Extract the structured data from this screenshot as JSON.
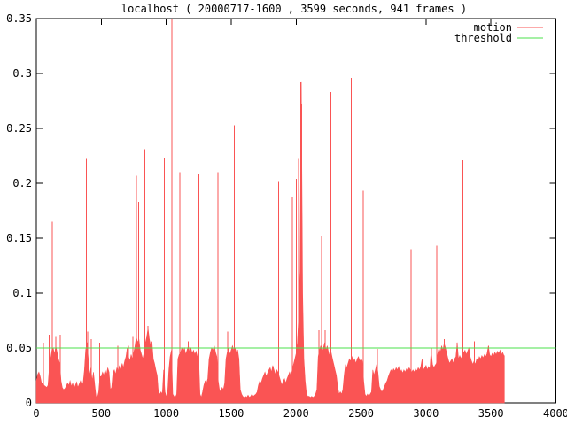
{
  "title": "localhost ( 20000717-1600 , 3599 seconds, 941 frames )",
  "colors": {
    "motion": "#fa5454",
    "threshold": "#4be14b",
    "axis": "#000000",
    "background": "#ffffff",
    "text": "#000000"
  },
  "legend": {
    "items": [
      {
        "label": "motion",
        "series": "motion"
      },
      {
        "label": "threshold",
        "series": "threshold"
      }
    ]
  },
  "chart_data": {
    "type": "line",
    "title": "localhost ( 20000717-1600 , 3599 seconds, 941 frames )",
    "xlabel": "",
    "ylabel": "",
    "xlim": [
      0,
      4000
    ],
    "ylim": [
      0,
      0.35
    ],
    "grid": false,
    "legend_position": "top-right-inside",
    "x_ticks": {
      "values": [
        0,
        500,
        1000,
        1500,
        2000,
        2500,
        3000,
        3500,
        4000
      ],
      "labels": [
        "0",
        "500",
        "1000",
        "1500",
        "2000",
        "2500",
        "3000",
        "3500",
        "4000"
      ]
    },
    "y_ticks": {
      "values": [
        0,
        0.05,
        0.1,
        0.15,
        0.2,
        0.25,
        0.3,
        0.35
      ],
      "labels": [
        "0",
        "0.05",
        "0.1",
        "0.15",
        "0.2",
        "0.25",
        "0.3",
        "0.35"
      ]
    },
    "series": [
      {
        "name": "motion",
        "color": "#fa5454",
        "style": "filled-noise-envelope",
        "x_start": 0,
        "x_step": 10,
        "x_end": 3603,
        "values": [
          0.02,
          0.026,
          0.028,
          0.024,
          0.018,
          0.018,
          0.016,
          0.015,
          0.014,
          0.016,
          0.032,
          0.04,
          0.048,
          0.05,
          0.044,
          0.052,
          0.046,
          0.04,
          0.036,
          0.02,
          0.014,
          0.012,
          0.013,
          0.015,
          0.018,
          0.016,
          0.02,
          0.015,
          0.018,
          0.013,
          0.016,
          0.019,
          0.014,
          0.017,
          0.02,
          0.016,
          0.018,
          0.03,
          0.048,
          0.055,
          0.04,
          0.025,
          0.032,
          0.02,
          0.028,
          0.016,
          0.006,
          0.005,
          0.01,
          0.024,
          0.024,
          0.028,
          0.025,
          0.03,
          0.026,
          0.032,
          0.028,
          0.012,
          0.014,
          0.028,
          0.03,
          0.026,
          0.032,
          0.028,
          0.034,
          0.03,
          0.036,
          0.032,
          0.038,
          0.042,
          0.05,
          0.042,
          0.038,
          0.044,
          0.04,
          0.046,
          0.052,
          0.06,
          0.055,
          0.058,
          0.048,
          0.044,
          0.04,
          0.046,
          0.055,
          0.06,
          0.068,
          0.058,
          0.052,
          0.056,
          0.04,
          0.036,
          0.03,
          0.025,
          0.01,
          0.008,
          0.01,
          0.008,
          0.03,
          0.01,
          0.006,
          0.008,
          0.03,
          0.042,
          0.048,
          0.008,
          0.006,
          0.005,
          0.008,
          0.04,
          0.044,
          0.046,
          0.05,
          0.047,
          0.05,
          0.044,
          0.048,
          0.052,
          0.046,
          0.05,
          0.045,
          0.048,
          0.044,
          0.047,
          0.042,
          0.04,
          0.008,
          0.005,
          0.01,
          0.016,
          0.02,
          0.018,
          0.022,
          0.04,
          0.046,
          0.05,
          0.048,
          0.052,
          0.046,
          0.042,
          0.02,
          0.012,
          0.01,
          0.014,
          0.012,
          0.018,
          0.04,
          0.046,
          0.05,
          0.044,
          0.048,
          0.052,
          0.048,
          0.05,
          0.046,
          0.048,
          0.04,
          0.012,
          0.008,
          0.006,
          0.005,
          0.006,
          0.005,
          0.007,
          0.005,
          0.006,
          0.008,
          0.006,
          0.007,
          0.008,
          0.01,
          0.016,
          0.02,
          0.018,
          0.022,
          0.025,
          0.028,
          0.024,
          0.027,
          0.03,
          0.032,
          0.028,
          0.034,
          0.03,
          0.026,
          0.03,
          0.028,
          0.024,
          0.02,
          0.016,
          0.02,
          0.022,
          0.018,
          0.022,
          0.025,
          0.028,
          0.024,
          0.03,
          0.035,
          0.04,
          0.045,
          0.055,
          0.08,
          0.12,
          0.292,
          0.1,
          0.04,
          0.02,
          0.008,
          0.006,
          0.006,
          0.005,
          0.006,
          0.005,
          0.006,
          0.008,
          0.012,
          0.042,
          0.048,
          0.052,
          0.046,
          0.05,
          0.055,
          0.048,
          0.052,
          0.046,
          0.042,
          0.046,
          0.04,
          0.035,
          0.03,
          0.025,
          0.015,
          0.008,
          0.01,
          0.008,
          0.012,
          0.025,
          0.035,
          0.032,
          0.036,
          0.04,
          0.038,
          0.042,
          0.038,
          0.04,
          0.036,
          0.04,
          0.042,
          0.038,
          0.04,
          0.038,
          0.02,
          0.008,
          0.006,
          0.008,
          0.006,
          0.008,
          0.01,
          0.03,
          0.025,
          0.03,
          0.035,
          0.028,
          0.015,
          0.012,
          0.01,
          0.012,
          0.015,
          0.018,
          0.02,
          0.024,
          0.027,
          0.03,
          0.028,
          0.031,
          0.029,
          0.032,
          0.03,
          0.033,
          0.028,
          0.03,
          0.027,
          0.03,
          0.028,
          0.031,
          0.029,
          0.032,
          0.03,
          0.028,
          0.03,
          0.028,
          0.031,
          0.029,
          0.032,
          0.03,
          0.033,
          0.04,
          0.03,
          0.032,
          0.034,
          0.03,
          0.033,
          0.031,
          0.048,
          0.035,
          0.032,
          0.034,
          0.036,
          0.045,
          0.05,
          0.046,
          0.052,
          0.048,
          0.054,
          0.05,
          0.045,
          0.04,
          0.036,
          0.038,
          0.04,
          0.036,
          0.04,
          0.042,
          0.055,
          0.04,
          0.043,
          0.04,
          0.044,
          0.046,
          0.048,
          0.044,
          0.047,
          0.05,
          0.042,
          0.038,
          0.035,
          0.038,
          0.035,
          0.04,
          0.038,
          0.042,
          0.04,
          0.043,
          0.041,
          0.044,
          0.042,
          0.045,
          0.052,
          0.044,
          0.042,
          0.045,
          0.043,
          0.046,
          0.044,
          0.047,
          0.045,
          0.048,
          0.044,
          0.046,
          0.043
        ],
        "spikes": [
          [
            55,
            0.055
          ],
          [
            100,
            0.062
          ],
          [
            123,
            0.165
          ],
          [
            150,
            0.06
          ],
          [
            166,
            0.058
          ],
          [
            183,
            0.062
          ],
          [
            387,
            0.222
          ],
          [
            395,
            0.065
          ],
          [
            423,
            0.058
          ],
          [
            487,
            0.055
          ],
          [
            628,
            0.052
          ],
          [
            710,
            0.052
          ],
          [
            744,
            0.06
          ],
          [
            770,
            0.207
          ],
          [
            788,
            0.183
          ],
          [
            836,
            0.231
          ],
          [
            860,
            0.07
          ],
          [
            985,
            0.223
          ],
          [
            1042,
            0.35
          ],
          [
            1104,
            0.21
          ],
          [
            1170,
            0.056
          ],
          [
            1250,
            0.209
          ],
          [
            1397,
            0.21
          ],
          [
            1473,
            0.065
          ],
          [
            1483,
            0.22
          ],
          [
            1524,
            0.253
          ],
          [
            1865,
            0.202
          ],
          [
            1970,
            0.187
          ],
          [
            2002,
            0.204
          ],
          [
            2018,
            0.222
          ],
          [
            2036,
            0.292
          ],
          [
            2044,
            0.272
          ],
          [
            2177,
            0.066
          ],
          [
            2195,
            0.152
          ],
          [
            2222,
            0.066
          ],
          [
            2268,
            0.283
          ],
          [
            2423,
            0.296
          ],
          [
            2518,
            0.193
          ],
          [
            2627,
            0.049
          ],
          [
            2884,
            0.14
          ],
          [
            3043,
            0.05
          ],
          [
            3082,
            0.143
          ],
          [
            3142,
            0.058
          ],
          [
            3241,
            0.055
          ],
          [
            3283,
            0.221
          ],
          [
            3373,
            0.056
          ],
          [
            3480,
            0.052
          ]
        ]
      },
      {
        "name": "threshold",
        "color": "#4be14b",
        "style": "horizontal-line",
        "value": 0.05
      }
    ]
  }
}
